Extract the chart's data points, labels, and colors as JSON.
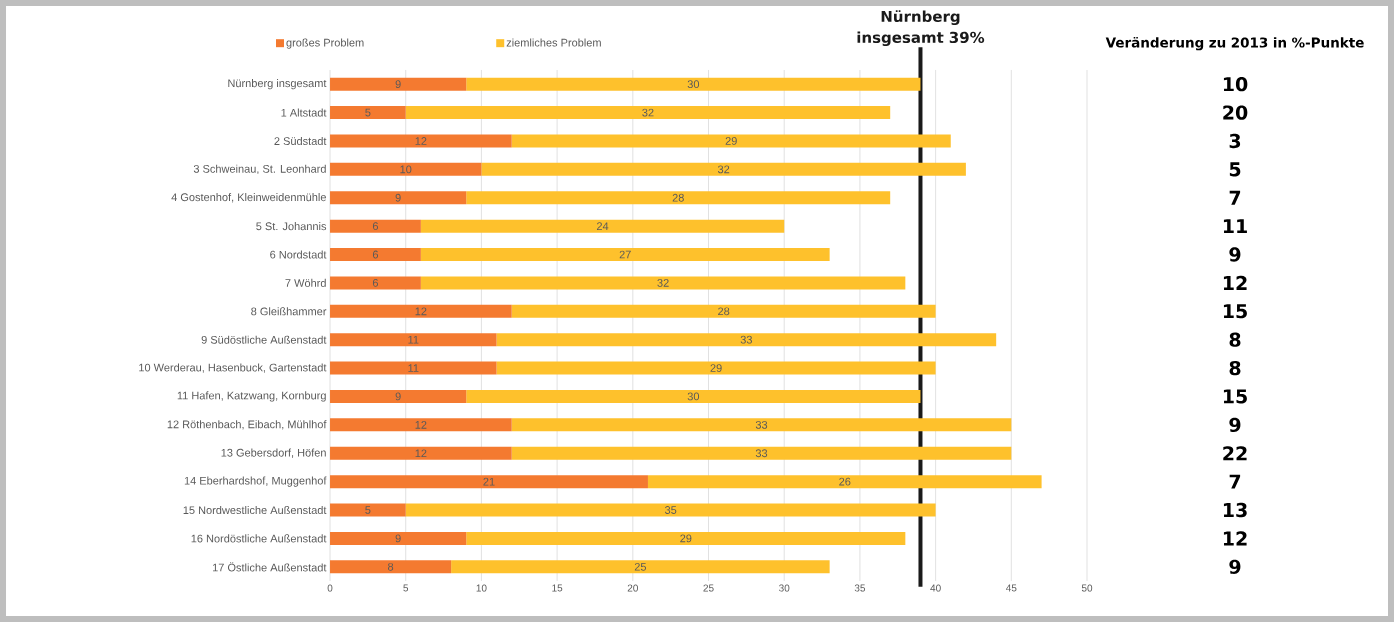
{
  "chart_data": {
    "type": "bar",
    "orientation": "horizontal",
    "stacked": true,
    "categories": [
      "Nürnberg insgesamt",
      "1 Altstadt",
      "2 Südstadt",
      "3 Schweinau, St. Leonhard",
      "4 Gostenhof, Kleinweidenmühle",
      "5 St. Johannis",
      "6 Nordstadt",
      "7 Wöhrd",
      "8 Gleißhammer",
      "9 Südöstliche Außenstadt",
      "10 Werderau, Hasenbuck, Gartenstadt",
      "11 Hafen, Katzwang, Kornburg",
      "12 Röthenbach, Eibach, Mühlhof",
      "13 Gebersdorf, Höfen",
      "14 Eberhardshof, Muggenhof",
      "15 Nordwestliche Außenstadt",
      "16 Nordöstliche Außenstadt",
      "17 Östliche Außenstadt"
    ],
    "series": [
      {
        "name": "großes Problem",
        "color": "#f47a30",
        "values": [
          9,
          5,
          12,
          10,
          9,
          6,
          6,
          6,
          12,
          11,
          11,
          9,
          12,
          12,
          21,
          5,
          9,
          8
        ]
      },
      {
        "name": "ziemliches Problem",
        "color": "#fec12c",
        "values": [
          30,
          32,
          29,
          32,
          28,
          24,
          27,
          32,
          28,
          33,
          29,
          30,
          33,
          33,
          26,
          35,
          29,
          25
        ]
      }
    ],
    "data_labels": true,
    "xlim": [
      0,
      50
    ],
    "xticks": [
      0,
      5,
      10,
      15,
      20,
      25,
      30,
      35,
      40,
      45,
      50
    ],
    "grid": "x",
    "legend": "top",
    "ref_lines": [
      {
        "axis": "x",
        "value": 39,
        "label": "Nürnberg insgesamt 39%",
        "color": "#1a1a1a"
      }
    ],
    "annotations": [
      "Veränderung zu 2013 in %-Punkte",
      "10",
      "20",
      "3",
      "5",
      "7",
      "11",
      "9",
      "12",
      "15",
      "8",
      "8",
      "15",
      "9",
      "22",
      "7",
      "13",
      "12",
      "9"
    ]
  }
}
